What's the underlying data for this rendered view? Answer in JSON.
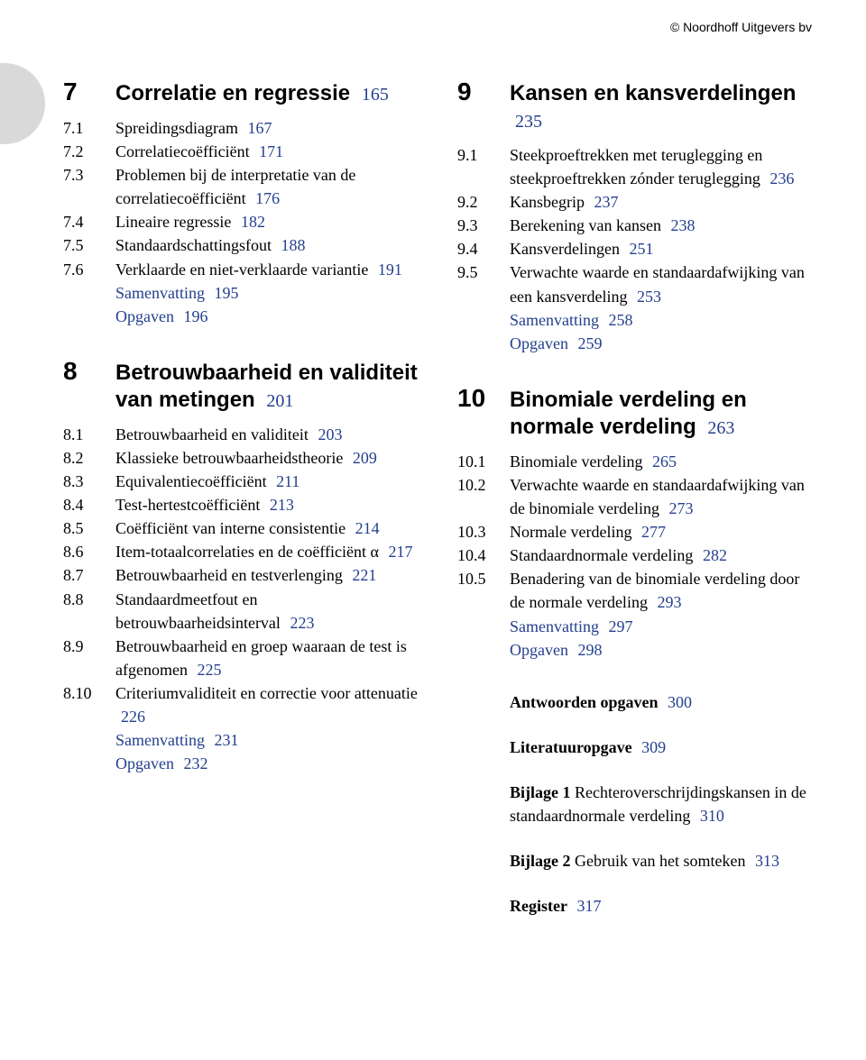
{
  "copyright": "© Noordhoff Uitgevers bv",
  "colors": {
    "page_ref": "#24408e",
    "text": "#000000",
    "tab": "#d9d9d9"
  },
  "left": {
    "ch7": {
      "num": "7",
      "title": "Correlatie en regressie",
      "page": "165",
      "items": [
        {
          "n": "7.1",
          "t": "Spreidingsdiagram",
          "p": "167"
        },
        {
          "n": "7.2",
          "t": "Correlatiecoëfficiënt",
          "p": "171"
        },
        {
          "n": "7.3",
          "t": "Problemen bij de interpretatie van de correlatiecoëfficiënt",
          "p": "176"
        },
        {
          "n": "7.4",
          "t": "Lineaire regressie",
          "p": "182"
        },
        {
          "n": "7.5",
          "t": "Standaardschattingsfout",
          "p": "188"
        },
        {
          "n": "7.6",
          "t": "Verklaarde en niet-verklaarde variantie",
          "p": "191"
        }
      ],
      "samenvatting": "Samenvatting",
      "sam_p": "195",
      "opgaven": "Opgaven",
      "opg_p": "196"
    },
    "ch8": {
      "num": "8",
      "title": "Betrouwbaarheid en validiteit van metingen",
      "page": "201",
      "items": [
        {
          "n": "8.1",
          "t": "Betrouwbaarheid en validiteit",
          "p": "203"
        },
        {
          "n": "8.2",
          "t": "Klassieke betrouwbaarheids­theorie",
          "p": "209"
        },
        {
          "n": "8.3",
          "t": "Equivalentiecoëfficiënt",
          "p": "211"
        },
        {
          "n": "8.4",
          "t": "Test-hertestcoëfficiënt",
          "p": "213"
        },
        {
          "n": "8.5",
          "t": "Coëfficiënt van interne consistentie",
          "p": "214"
        },
        {
          "n": "8.6",
          "t": "Item-totaalcorrelaties en de coëfficiënt α",
          "p": "217"
        },
        {
          "n": "8.7",
          "t": "Betrouwbaarheid en testverlenging",
          "p": "221"
        },
        {
          "n": "8.8",
          "t": "Standaardmeetfout en betrouwbaarheidsinterval",
          "p": "223"
        },
        {
          "n": "8.9",
          "t": "Betrouwbaarheid en groep waaraan de test is afgenomen",
          "p": "225"
        },
        {
          "n": "8.10",
          "t": "Criteriumvaliditeit en correctie voor attenuatie",
          "p": "226"
        }
      ],
      "samenvatting": "Samenvatting",
      "sam_p": "231",
      "opgaven": "Opgaven",
      "opg_p": "232"
    }
  },
  "right": {
    "ch9": {
      "num": "9",
      "title": "Kansen en kansverdelingen",
      "page": "235",
      "items": [
        {
          "n": "9.1",
          "t": "Steekproeftrekken met teruglegging en steekproeftrekken zónder teruglegging",
          "p": "236"
        },
        {
          "n": "9.2",
          "t": "Kansbegrip",
          "p": "237"
        },
        {
          "n": "9.3",
          "t": "Berekening van kansen",
          "p": "238"
        },
        {
          "n": "9.4",
          "t": "Kansverdelingen",
          "p": "251"
        },
        {
          "n": "9.5",
          "t": "Verwachte waarde en standaardafwijking van een kansverdeling",
          "p": "253"
        }
      ],
      "samenvatting": "Samenvatting",
      "sam_p": "258",
      "opgaven": "Opgaven",
      "opg_p": "259"
    },
    "ch10": {
      "num": "10",
      "title": "Binomiale verdeling en normale verdeling",
      "page": "263",
      "items": [
        {
          "n": "10.1",
          "t": "Binomiale verdeling",
          "p": "265"
        },
        {
          "n": "10.2",
          "t": "Verwachte waarde en standaardafwijking van de binomiale verdeling",
          "p": "273"
        },
        {
          "n": "10.3",
          "t": "Normale verdeling",
          "p": "277"
        },
        {
          "n": "10.4",
          "t": "Standaardnormale verdeling",
          "p": "282"
        },
        {
          "n": "10.5",
          "t": "Benadering van de binomiale verdeling door de normale verdeling",
          "p": "293"
        }
      ],
      "samenvatting": "Samenvatting",
      "sam_p": "297",
      "opgaven": "Opgaven",
      "opg_p": "298"
    },
    "backmatter": [
      {
        "bold": "Antwoorden opgaven",
        "rest": "",
        "p": "300"
      },
      {
        "bold": "Literatuuropgave",
        "rest": "",
        "p": "309"
      },
      {
        "bold": "Bijlage 1",
        "rest": " Rechteroverschrijdings­kansen in de standaardnormale verdeling",
        "p": "310"
      },
      {
        "bold": "Bijlage 2",
        "rest": " Gebruik van het somteken",
        "p": "313"
      },
      {
        "bold": "Register",
        "rest": "",
        "p": "317"
      }
    ]
  }
}
